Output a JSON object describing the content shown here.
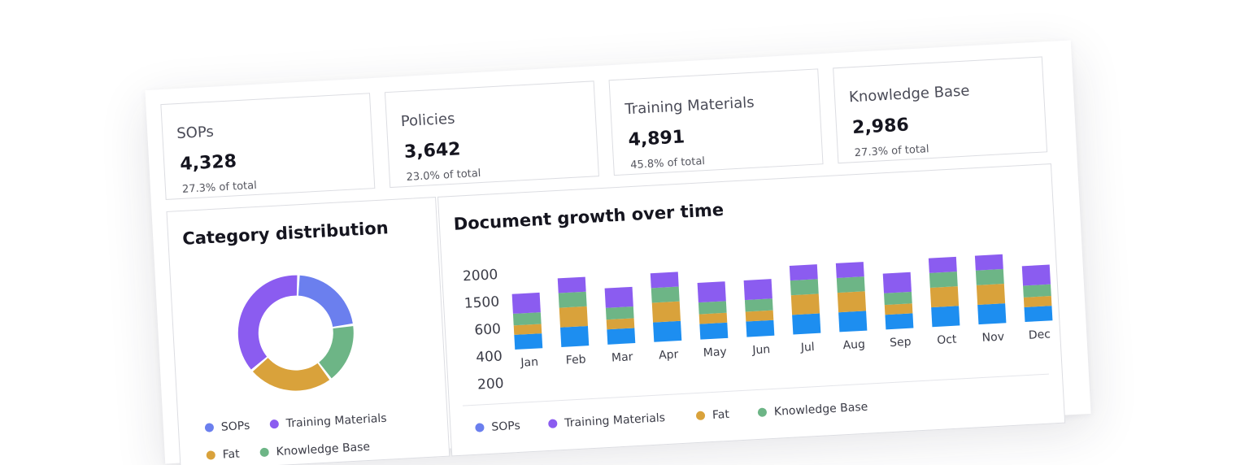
{
  "stats": [
    {
      "label": "SOPs",
      "value": "4,328",
      "sub": "27.3% of total"
    },
    {
      "label": "Policies",
      "value": "3,642",
      "sub": "23.0% of total"
    },
    {
      "label": "Training Materials",
      "value": "4,891",
      "sub": "45.8% of total"
    },
    {
      "label": "Knowledge Base",
      "value": "2,986",
      "sub": "27.3% of total"
    }
  ],
  "colors": {
    "sops": "#6b7fee",
    "training": "#8b5cf0",
    "fat": "#d9a23b",
    "kb": "#6db586",
    "blue": "#1d8ef0"
  },
  "donut": {
    "title": "Category distribution",
    "legend": [
      "SOPs",
      "Training Materials",
      "Fat",
      "Knowledge Base"
    ]
  },
  "chart_data": [
    {
      "type": "pie",
      "title": "Category distribution",
      "categories": [
        "SOPs",
        "Knowledge Base",
        "Fat",
        "Training Materials"
      ],
      "values": [
        22,
        17,
        24,
        37
      ],
      "style": "donut"
    },
    {
      "type": "bar",
      "stacked": true,
      "title": "Document growth over time",
      "categories": [
        "Jan",
        "Feb",
        "Mar",
        "Apr",
        "May",
        "Jun",
        "Jul",
        "Aug",
        "Sep",
        "Oct",
        "Nov",
        "Dec"
      ],
      "y_tick_labels": [
        "2000",
        "1500",
        "600",
        "400",
        "200"
      ],
      "series": [
        {
          "name": "SOPs",
          "values": [
            390,
            520,
            400,
            520,
            410,
            410,
            520,
            520,
            390,
            520,
            520,
            390
          ]
        },
        {
          "name": "Fat",
          "values": [
            250,
            520,
            260,
            520,
            260,
            260,
            520,
            520,
            260,
            520,
            520,
            260
          ]
        },
        {
          "name": "Knowledge Base",
          "values": [
            310,
            390,
            310,
            390,
            310,
            310,
            390,
            390,
            310,
            390,
            390,
            310
          ]
        },
        {
          "name": "Training Materials",
          "values": [
            520,
            390,
            520,
            390,
            520,
            520,
            390,
            390,
            520,
            390,
            390,
            520
          ]
        }
      ],
      "legend": [
        "SOPs",
        "Training Materials",
        "Fat",
        "Knowledge Base"
      ]
    }
  ]
}
